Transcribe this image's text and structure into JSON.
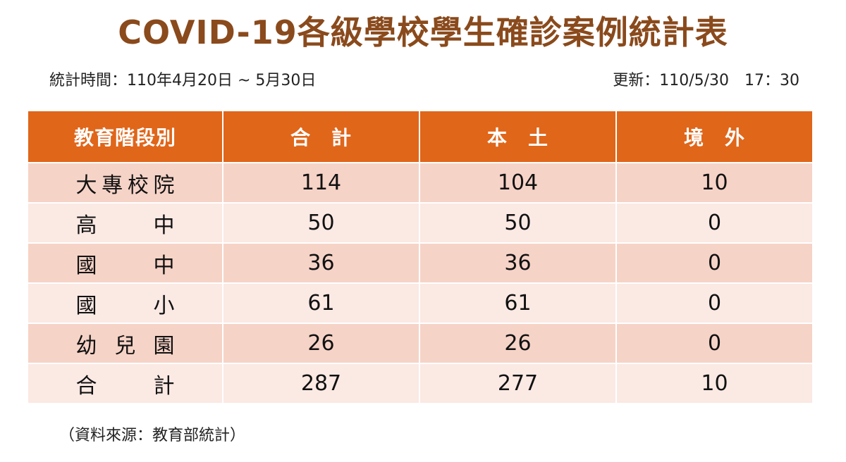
{
  "title": "COVID-19各級學校學生確診案例統計表",
  "period": "統計時間：110年4月20日 ~ 5月30日",
  "updated": "更新：110/5/30　17：30",
  "table": {
    "headers": [
      "教育階段別",
      "合　計",
      "本　土",
      "境　外"
    ],
    "rows": [
      {
        "level": "大專校院",
        "total": "114",
        "local": "104",
        "imported": "10"
      },
      {
        "level": "高　　中",
        "total": "50",
        "local": "50",
        "imported": "0"
      },
      {
        "level": "國　　中",
        "total": "36",
        "local": "36",
        "imported": "0"
      },
      {
        "level": "國　　小",
        "total": "61",
        "local": "61",
        "imported": "0"
      },
      {
        "level": "幼 兒 園",
        "total": "26",
        "local": "26",
        "imported": "0"
      },
      {
        "level": "合　　計",
        "total": "287",
        "local": "277",
        "imported": "10"
      }
    ]
  },
  "source": "（資料來源：教育部統計）",
  "colors": {
    "title": "#8a4a1c",
    "header_bg": "#e0661a",
    "row_dark": "#f6d3c7",
    "row_light": "#fbe9e4"
  }
}
